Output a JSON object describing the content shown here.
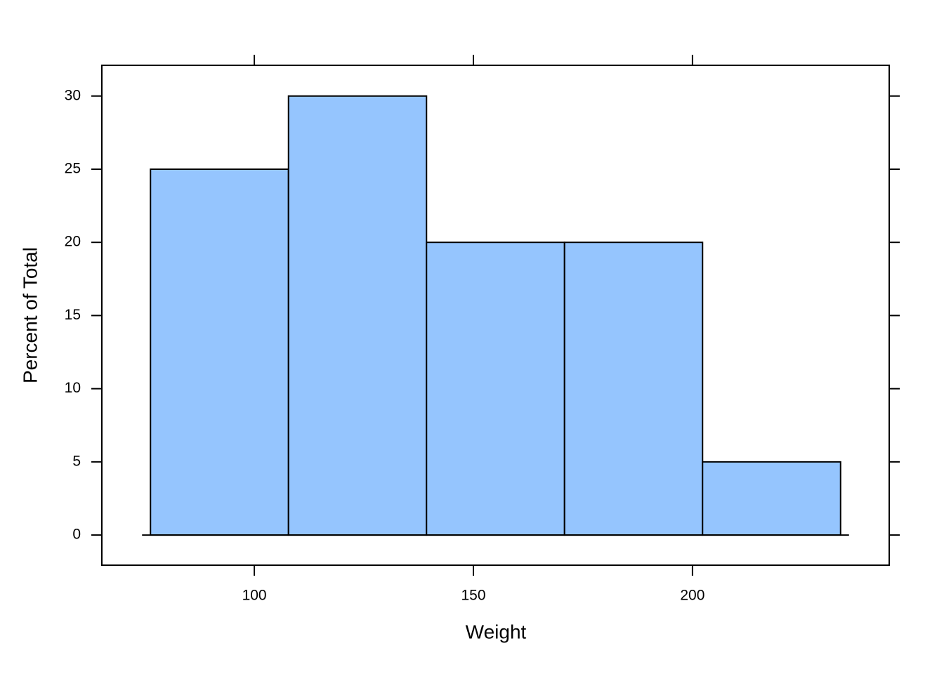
{
  "chart_data": {
    "type": "histogram",
    "xlabel": "Weight",
    "ylabel": "Percent of Total",
    "bins": [
      76.3,
      107.8,
      139.3,
      170.8,
      202.3,
      233.8
    ],
    "values": [
      25,
      30,
      20,
      20,
      5
    ],
    "color": "#95c5fe",
    "xlim": [
      65.2,
      244.9
    ],
    "xticks": [
      100,
      150,
      200
    ],
    "ylim": [
      -2.06,
      32.1
    ],
    "yticks": [
      0,
      5,
      10,
      15,
      20,
      25,
      30
    ]
  }
}
